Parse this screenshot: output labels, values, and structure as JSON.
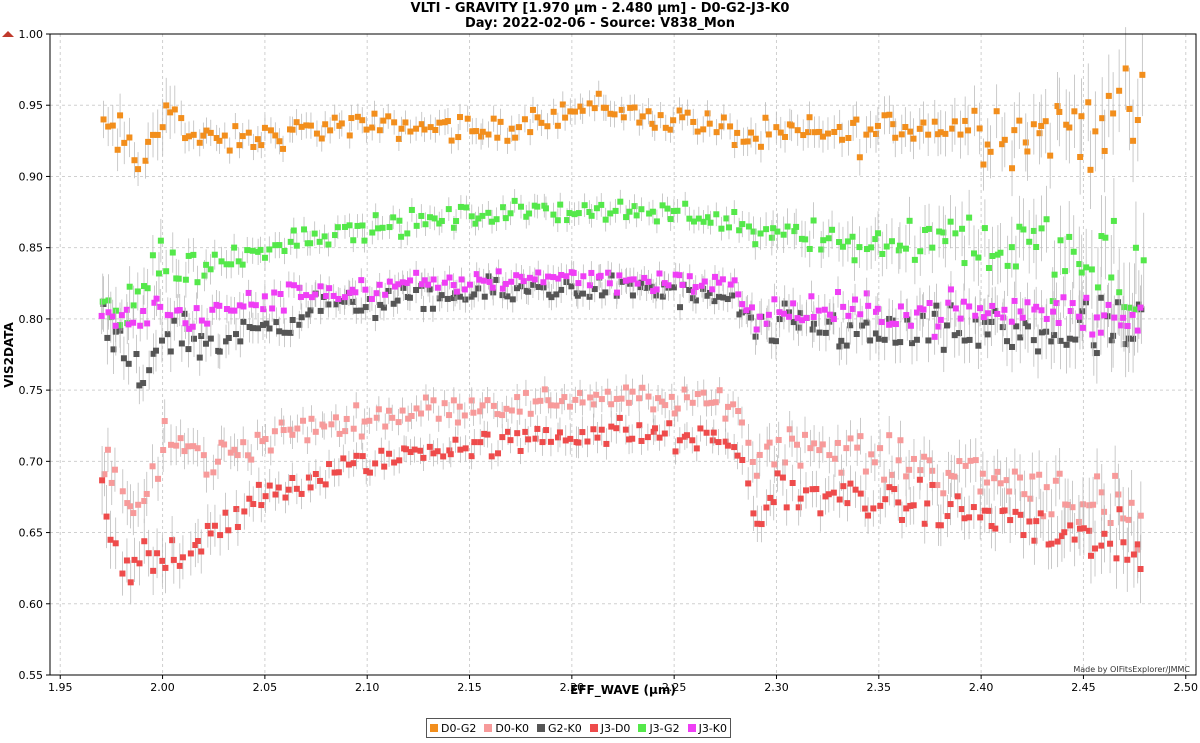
{
  "chart_data": {
    "type": "scatter",
    "title": "VLTI - GRAVITY [1.970 µm - 2.480 µm] - D0-G2-J3-K0",
    "subtitle": "Day: 2022-02-06 - Source: V838_Mon",
    "xlabel": "EFF_WAVE (µm)",
    "ylabel": "VIS2DATA",
    "xlim": [
      1.945,
      2.505
    ],
    "ylim": [
      0.55,
      1.0
    ],
    "x_ticks": [
      "1.95",
      "2.00",
      "2.05",
      "2.10",
      "2.15",
      "2.20",
      "2.25",
      "2.30",
      "2.35",
      "2.40",
      "2.45",
      "2.50"
    ],
    "y_ticks": [
      "0.55",
      "0.60",
      "0.65",
      "0.70",
      "0.75",
      "0.80",
      "0.85",
      "0.90",
      "0.95",
      "1.00"
    ],
    "grid": true,
    "legend_position": "bottom-center",
    "credit": "Made by OIFitsExplorer/JMMC",
    "x_range": [
      1.97,
      2.48
    ],
    "series": [
      {
        "name": "D0-G2",
        "color": "#f28e1c",
        "x": [
          1.97,
          1.98,
          1.99,
          2.0,
          2.005,
          2.01,
          2.02,
          2.04,
          2.06,
          2.08,
          2.1,
          2.12,
          2.14,
          2.16,
          2.18,
          2.19,
          2.2,
          2.21,
          2.22,
          2.24,
          2.26,
          2.28,
          2.29,
          2.3,
          2.32,
          2.34,
          2.36,
          2.38,
          2.4,
          2.42,
          2.44,
          2.46,
          2.48
        ],
        "y": [
          0.935,
          0.925,
          0.905,
          0.945,
          0.965,
          0.93,
          0.925,
          0.925,
          0.93,
          0.935,
          0.935,
          0.935,
          0.935,
          0.93,
          0.94,
          0.945,
          0.945,
          0.95,
          0.948,
          0.94,
          0.94,
          0.93,
          0.925,
          0.93,
          0.93,
          0.93,
          0.935,
          0.935,
          0.935,
          0.93,
          0.935,
          0.94,
          0.945
        ],
        "scatter": [
          0.012,
          0.015,
          0.01,
          0.02,
          0.018,
          0.01,
          0.008,
          0.008,
          0.008,
          0.008,
          0.008,
          0.007,
          0.008,
          0.008,
          0.008,
          0.008,
          0.008,
          0.008,
          0.008,
          0.008,
          0.008,
          0.008,
          0.01,
          0.01,
          0.01,
          0.012,
          0.013,
          0.015,
          0.018,
          0.02,
          0.025,
          0.03,
          0.03
        ]
      },
      {
        "name": "D0-K0",
        "color": "#f79a9a",
        "x": [
          1.97,
          1.98,
          1.99,
          2.0,
          2.01,
          2.02,
          2.04,
          2.06,
          2.08,
          2.1,
          2.12,
          2.14,
          2.16,
          2.18,
          2.2,
          2.22,
          2.24,
          2.26,
          2.28,
          2.29,
          2.3,
          2.32,
          2.34,
          2.36,
          2.38,
          2.4,
          2.42,
          2.44,
          2.46,
          2.48
        ],
        "y": [
          0.7,
          0.68,
          0.66,
          0.715,
          0.71,
          0.7,
          0.71,
          0.72,
          0.725,
          0.73,
          0.735,
          0.738,
          0.74,
          0.74,
          0.745,
          0.745,
          0.742,
          0.742,
          0.74,
          0.7,
          0.715,
          0.71,
          0.705,
          0.7,
          0.695,
          0.69,
          0.685,
          0.68,
          0.665,
          0.65
        ],
        "scatter": [
          0.015,
          0.015,
          0.015,
          0.015,
          0.012,
          0.012,
          0.01,
          0.009,
          0.008,
          0.008,
          0.008,
          0.008,
          0.008,
          0.008,
          0.008,
          0.008,
          0.008,
          0.008,
          0.008,
          0.015,
          0.012,
          0.012,
          0.012,
          0.013,
          0.014,
          0.015,
          0.016,
          0.018,
          0.02,
          0.025
        ]
      },
      {
        "name": "G2-K0",
        "color": "#555555",
        "x": [
          1.97,
          1.98,
          1.99,
          2.0,
          2.01,
          2.02,
          2.04,
          2.06,
          2.08,
          2.1,
          2.12,
          2.14,
          2.16,
          2.18,
          2.2,
          2.22,
          2.24,
          2.26,
          2.28,
          2.29,
          2.3,
          2.32,
          2.34,
          2.36,
          2.38,
          2.4,
          2.42,
          2.44,
          2.46,
          2.48
        ],
        "y": [
          0.8,
          0.77,
          0.76,
          0.79,
          0.79,
          0.78,
          0.79,
          0.8,
          0.81,
          0.81,
          0.813,
          0.815,
          0.818,
          0.82,
          0.822,
          0.822,
          0.82,
          0.815,
          0.81,
          0.79,
          0.795,
          0.795,
          0.79,
          0.79,
          0.79,
          0.79,
          0.79,
          0.79,
          0.79,
          0.79
        ],
        "scatter": [
          0.02,
          0.015,
          0.012,
          0.015,
          0.012,
          0.012,
          0.01,
          0.009,
          0.008,
          0.008,
          0.008,
          0.008,
          0.008,
          0.008,
          0.008,
          0.008,
          0.008,
          0.008,
          0.008,
          0.012,
          0.012,
          0.012,
          0.013,
          0.014,
          0.015,
          0.016,
          0.018,
          0.02,
          0.022,
          0.025
        ]
      },
      {
        "name": "J3-D0",
        "color": "#ee4b4b",
        "x": [
          1.97,
          1.98,
          1.99,
          2.0,
          2.01,
          2.02,
          2.04,
          2.06,
          2.08,
          2.1,
          2.12,
          2.14,
          2.16,
          2.18,
          2.2,
          2.22,
          2.24,
          2.26,
          2.28,
          2.29,
          2.3,
          2.32,
          2.34,
          2.36,
          2.38,
          2.4,
          2.42,
          2.44,
          2.46,
          2.48
        ],
        "y": [
          0.66,
          0.62,
          0.63,
          0.63,
          0.64,
          0.65,
          0.665,
          0.68,
          0.69,
          0.7,
          0.705,
          0.71,
          0.712,
          0.715,
          0.72,
          0.72,
          0.718,
          0.715,
          0.712,
          0.66,
          0.68,
          0.675,
          0.675,
          0.67,
          0.665,
          0.665,
          0.655,
          0.65,
          0.64,
          0.625
        ],
        "scatter": [
          0.025,
          0.015,
          0.015,
          0.018,
          0.015,
          0.015,
          0.012,
          0.01,
          0.009,
          0.008,
          0.008,
          0.008,
          0.008,
          0.008,
          0.01,
          0.01,
          0.008,
          0.008,
          0.008,
          0.012,
          0.012,
          0.012,
          0.012,
          0.012,
          0.014,
          0.015,
          0.016,
          0.018,
          0.02,
          0.025
        ]
      },
      {
        "name": "J3-G2",
        "color": "#54e84a",
        "x": [
          1.97,
          1.98,
          1.99,
          2.0,
          2.01,
          2.02,
          2.04,
          2.06,
          2.08,
          2.1,
          2.12,
          2.14,
          2.16,
          2.18,
          2.2,
          2.22,
          2.24,
          2.26,
          2.28,
          2.29,
          2.3,
          2.32,
          2.34,
          2.36,
          2.38,
          2.4,
          2.42,
          2.44,
          2.46,
          2.48
        ],
        "y": [
          0.815,
          0.805,
          0.82,
          0.845,
          0.835,
          0.835,
          0.845,
          0.855,
          0.86,
          0.863,
          0.867,
          0.87,
          0.873,
          0.875,
          0.877,
          0.876,
          0.875,
          0.873,
          0.87,
          0.86,
          0.865,
          0.86,
          0.85,
          0.855,
          0.86,
          0.855,
          0.85,
          0.84,
          0.83,
          0.83
        ],
        "scatter": [
          0.02,
          0.015,
          0.012,
          0.015,
          0.012,
          0.01,
          0.008,
          0.008,
          0.007,
          0.007,
          0.007,
          0.007,
          0.007,
          0.007,
          0.007,
          0.007,
          0.007,
          0.007,
          0.007,
          0.01,
          0.012,
          0.012,
          0.014,
          0.016,
          0.018,
          0.02,
          0.022,
          0.025,
          0.03,
          0.035
        ]
      },
      {
        "name": "J3-K0",
        "color": "#ef3ef5",
        "x": [
          1.97,
          1.98,
          1.99,
          2.0,
          2.01,
          2.02,
          2.04,
          2.06,
          2.08,
          2.1,
          2.12,
          2.14,
          2.16,
          2.18,
          2.2,
          2.22,
          2.24,
          2.26,
          2.28,
          2.29,
          2.3,
          2.32,
          2.34,
          2.36,
          2.38,
          2.4,
          2.42,
          2.44,
          2.46,
          2.48
        ],
        "y": [
          0.8,
          0.8,
          0.8,
          0.81,
          0.8,
          0.8,
          0.81,
          0.815,
          0.82,
          0.82,
          0.823,
          0.825,
          0.827,
          0.83,
          0.83,
          0.828,
          0.827,
          0.825,
          0.822,
          0.8,
          0.805,
          0.805,
          0.805,
          0.805,
          0.805,
          0.805,
          0.805,
          0.805,
          0.8,
          0.8
        ],
        "scatter": [
          0.012,
          0.01,
          0.01,
          0.012,
          0.01,
          0.01,
          0.008,
          0.008,
          0.007,
          0.007,
          0.007,
          0.007,
          0.007,
          0.007,
          0.007,
          0.007,
          0.007,
          0.007,
          0.007,
          0.01,
          0.01,
          0.01,
          0.01,
          0.01,
          0.012,
          0.012,
          0.013,
          0.014,
          0.015,
          0.015
        ]
      }
    ]
  }
}
